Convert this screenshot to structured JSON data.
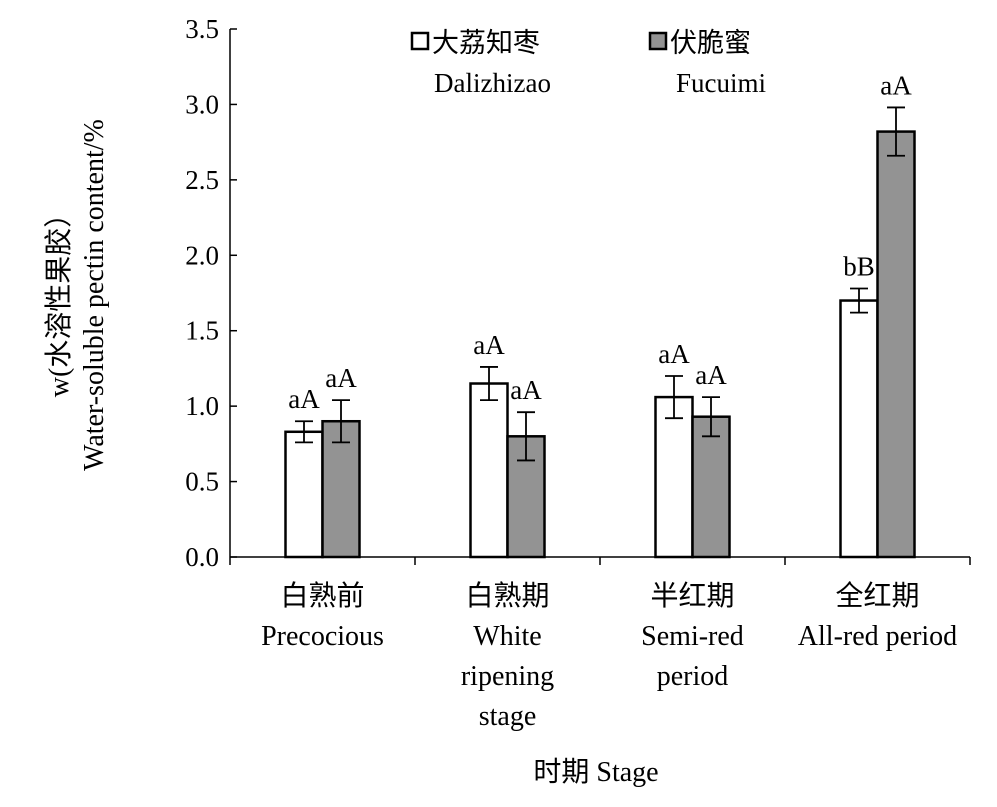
{
  "chart_data": {
    "type": "bar",
    "xlabel": "时期 Stage",
    "ylabel": [
      "w(水溶性果胶）",
      "Water-soluble pectin content/%"
    ],
    "ylim": [
      0,
      3.5
    ],
    "yticks": [
      "0.0",
      "0.5",
      "1.0",
      "1.5",
      "2.0",
      "2.5",
      "3.0",
      "3.5"
    ],
    "categories": [
      [
        "白熟前",
        "Precocious"
      ],
      [
        "白熟期",
        "White",
        "ripening",
        "stage"
      ],
      [
        "半红期",
        "Semi-red",
        "period"
      ],
      [
        "全红期",
        "All-red period"
      ]
    ],
    "series": [
      {
        "name": [
          "大荔知枣",
          "Dalizhizao"
        ],
        "color": "#ffffff",
        "values": [
          0.83,
          1.15,
          1.06,
          1.7
        ],
        "errors": [
          0.07,
          0.11,
          0.14,
          0.08
        ],
        "labels": [
          "aA",
          "aA",
          "aA",
          "bB"
        ]
      },
      {
        "name": [
          "伏脆蜜",
          "Fucuimi"
        ],
        "color": "#939393",
        "values": [
          0.9,
          0.8,
          0.93,
          2.82
        ],
        "errors": [
          0.14,
          0.16,
          0.13,
          0.16
        ],
        "labels": [
          "aA",
          "aA",
          "aA",
          "aA"
        ]
      }
    ],
    "legend_position": "top",
    "grid": false
  }
}
